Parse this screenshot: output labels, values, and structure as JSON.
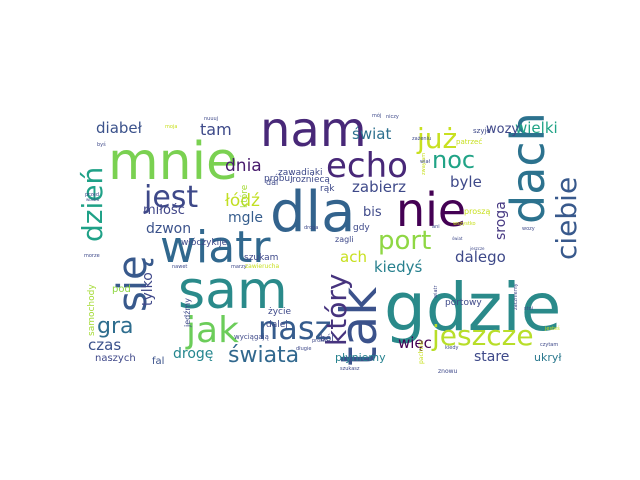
{
  "words": [
    {
      "text": "gdzie",
      "color": "#2a8a8a"
    },
    {
      "text": "dla",
      "color": "#33638d"
    },
    {
      "text": "sam",
      "color": "#2a8a8a"
    },
    {
      "text": "mnie",
      "color": "#7ad151"
    },
    {
      "text": "nam",
      "color": "#482878"
    },
    {
      "text": "wiatr",
      "color": "#31688e"
    },
    {
      "text": "tak",
      "color": "#3b528b"
    },
    {
      "text": "nie",
      "color": "#440154"
    },
    {
      "text": "dach",
      "color": "#2c728e"
    },
    {
      "text": "się",
      "color": "#38598c"
    },
    {
      "text": "echo",
      "color": "#482878"
    },
    {
      "text": "jak",
      "color": "#6ccd5a"
    },
    {
      "text": "nasz",
      "color": "#365c8d"
    },
    {
      "text": "jest",
      "color": "#3e4989"
    },
    {
      "text": "już",
      "color": "#c8e020"
    },
    {
      "text": "noc",
      "color": "#20a386"
    },
    {
      "text": "dzień",
      "color": "#1fa187"
    },
    {
      "text": "port",
      "color": "#8fd744"
    },
    {
      "text": "ciebie",
      "color": "#38598c"
    },
    {
      "text": "który",
      "color": "#46337e"
    },
    {
      "text": "jeszcze",
      "color": "#b8de29"
    },
    {
      "text": "świata",
      "color": "#31688e"
    },
    {
      "text": "gra",
      "color": "#2e6d8e"
    },
    {
      "text": "tam",
      "color": "#3e4a89"
    },
    {
      "text": "diabeł",
      "color": "#3b528b"
    },
    {
      "text": "świat",
      "color": "#2d708e"
    },
    {
      "text": "wielki",
      "color": "#20a386"
    },
    {
      "text": "wozy",
      "color": "#3f4889"
    },
    {
      "text": "dnia",
      "color": "#481b6d"
    },
    {
      "text": "zabierz",
      "color": "#3e4989"
    },
    {
      "text": "byle",
      "color": "#3e4989"
    },
    {
      "text": "łódź",
      "color": "#c2df23"
    },
    {
      "text": "mgle",
      "color": "#365d8d"
    },
    {
      "text": "miłość",
      "color": "#404688"
    },
    {
      "text": "bis",
      "color": "#3e4989"
    },
    {
      "text": "dzwon",
      "color": "#3b528b"
    },
    {
      "text": "ach",
      "color": "#c8e020"
    },
    {
      "text": "kiedyś",
      "color": "#27808e"
    },
    {
      "text": "dalego",
      "color": "#3e4989"
    },
    {
      "text": "sroga",
      "color": "#453781"
    },
    {
      "text": "tylko",
      "color": "#3f4889"
    },
    {
      "text": "czas",
      "color": "#3b528b"
    },
    {
      "text": "drogę",
      "color": "#24868e"
    },
    {
      "text": "więc",
      "color": "#440154"
    },
    {
      "text": "stare",
      "color": "#3e4989"
    },
    {
      "text": "płyniemy",
      "color": "#26828e"
    },
    {
      "text": "ukrył",
      "color": "#2a788e"
    },
    {
      "text": "naszych",
      "color": "#3f4889"
    },
    {
      "text": "fal",
      "color": "#3b528b"
    },
    {
      "text": "pod",
      "color": "#8fd744"
    },
    {
      "text": "samochody",
      "color": "#a5db36"
    },
    {
      "text": "życie",
      "color": "#3e4989"
    },
    {
      "text": "dalej",
      "color": "#3e4989"
    },
    {
      "text": "szukam",
      "color": "#3e4989"
    },
    {
      "text": "ból",
      "color": "#3e4989"
    },
    {
      "text": "gdy",
      "color": "#3e4989"
    },
    {
      "text": "zagli",
      "color": "#3e4989"
    },
    {
      "text": "portowy",
      "color": "#3e4989"
    },
    {
      "text": "włóczykije",
      "color": "#3e4989"
    },
    {
      "text": "próbuj",
      "color": "#3e4989"
    },
    {
      "text": "rozniecą",
      "color": "#3e4989"
    },
    {
      "text": "dal",
      "color": "#3e4989"
    },
    {
      "text": "zawadiaki",
      "color": "#3e4989"
    },
    {
      "text": "które",
      "color": "#a5db36"
    },
    {
      "text": "rąk",
      "color": "#3e4989"
    },
    {
      "text": "jedźmy",
      "color": "#3e4989"
    },
    {
      "text": "proszą",
      "color": "#c8e020"
    },
    {
      "text": "szyje",
      "color": "#3e4989"
    },
    {
      "text": "patrzeć",
      "color": "#c8e020"
    },
    {
      "text": "nuuuj",
      "color": "#3e4989"
    },
    {
      "text": "moja",
      "color": "#c8e020"
    },
    {
      "text": "mój",
      "color": "#3e4989"
    },
    {
      "text": "niczy",
      "color": "#3e4989"
    },
    {
      "text": "zażeniu",
      "color": "#3e4989"
    },
    {
      "text": "marzy",
      "color": "#3e4989"
    },
    {
      "text": "zawierucha",
      "color": "#c8e020"
    },
    {
      "text": "wyciągają",
      "color": "#3e4989"
    },
    {
      "text": "droga",
      "color": "#3e4989"
    },
    {
      "text": "długie",
      "color": "#3e4989"
    },
    {
      "text": "prosto",
      "color": "#3e4989"
    },
    {
      "text": "szukasz",
      "color": "#3e4989"
    },
    {
      "text": "znowu",
      "color": "#3e4989"
    },
    {
      "text": "pachnie",
      "color": "#c8e020"
    },
    {
      "text": "kiedy",
      "color": "#3e4989"
    },
    {
      "text": "zaczniemy",
      "color": "#3e4989"
    },
    {
      "text": "jesteś",
      "color": "#c8e020"
    },
    {
      "text": "czytam",
      "color": "#3e4989"
    },
    {
      "text": "wszystko",
      "color": "#c8e020"
    },
    {
      "text": "zwayłam",
      "color": "#c8e020"
    },
    {
      "text": "morze",
      "color": "#3e4989"
    },
    {
      "text": "nawet",
      "color": "#3e4989"
    },
    {
      "text": "przed",
      "color": "#3e4989"
    },
    {
      "text": "wiadro",
      "color": "#3e4989"
    },
    {
      "text": "byś",
      "color": "#3e4989"
    },
    {
      "text": "stoi",
      "color": "#3e4989"
    },
    {
      "text": "jeszcze",
      "color": "#3e4989"
    },
    {
      "text": "ani",
      "color": "#3e4989"
    },
    {
      "text": "wozy",
      "color": "#3e4989"
    },
    {
      "text": "świat",
      "color": "#3e4989"
    },
    {
      "text": "wiał",
      "color": "#3e4989"
    },
    {
      "text": "wiatr",
      "color": "#3e4989"
    }
  ]
}
